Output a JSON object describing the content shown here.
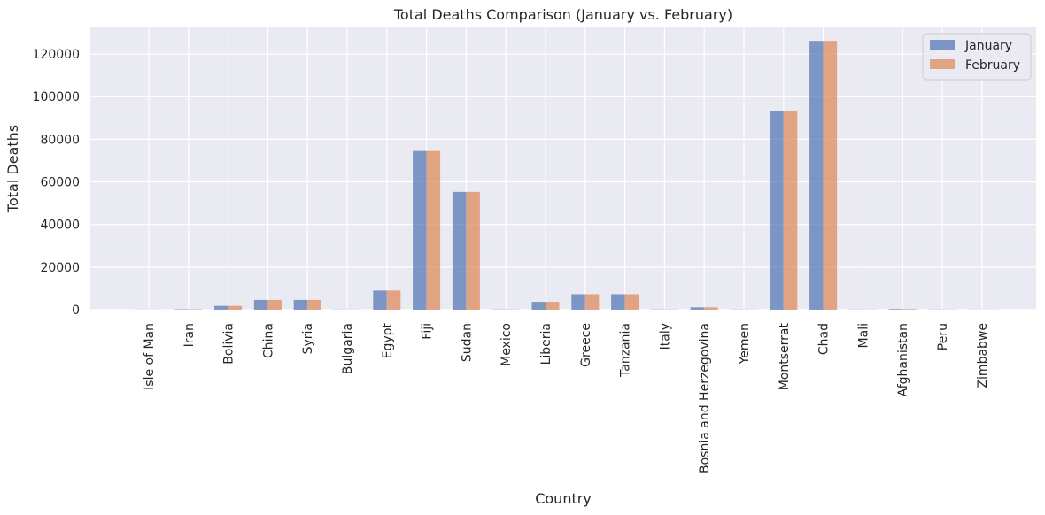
{
  "chart_data": {
    "type": "bar",
    "title": "Total Deaths Comparison (January vs. February)",
    "xlabel": "Country",
    "ylabel": "Total Deaths",
    "categories": [
      "Isle of Man",
      "Iran",
      "Bolivia",
      "China",
      "Syria",
      "Bulgaria",
      "Egypt",
      "Fiji",
      "Sudan",
      "Mexico",
      "Liberia",
      "Greece",
      "Tanzania",
      "Italy",
      "Bosnia and Herzegovina",
      "Yemen",
      "Montserrat",
      "Chad",
      "Mali",
      "Afghanistan",
      "Peru",
      "Zimbabwe"
    ],
    "series": [
      {
        "name": "January",
        "color": "#4C72B0",
        "values": [
          60,
          200,
          1800,
          4600,
          4600,
          80,
          9000,
          74500,
          55300,
          120,
          3700,
          7300,
          7300,
          120,
          1100,
          90,
          93300,
          126200,
          80,
          300,
          90,
          60
        ]
      },
      {
        "name": "February",
        "color": "#DD8452",
        "values": [
          60,
          200,
          1800,
          4600,
          4600,
          80,
          9000,
          74500,
          55300,
          120,
          3700,
          7300,
          7300,
          120,
          1100,
          90,
          93300,
          126200,
          80,
          300,
          90,
          60
        ]
      }
    ],
    "ylim": [
      0,
      132500
    ],
    "yticks": [
      0,
      20000,
      40000,
      60000,
      80000,
      100000,
      120000
    ],
    "grid": true,
    "legend_position": "top-right",
    "background": "#EAEAF2"
  }
}
